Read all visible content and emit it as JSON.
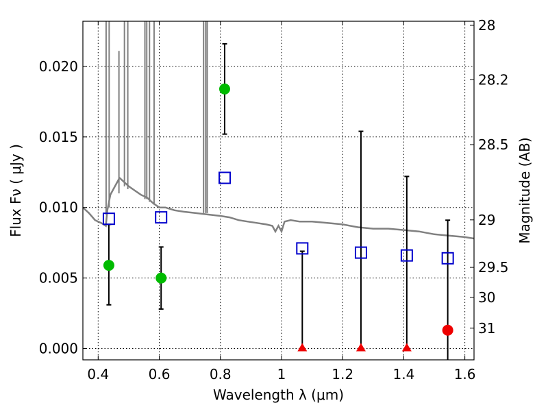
{
  "chart_data": {
    "type": "scatter",
    "xlabel": "Wavelength  λ (μm)",
    "ylabel": "Flux  Fν  ( μJy )",
    "y2label": "Magnitude (AB)",
    "xlim": [
      0.35,
      1.63
    ],
    "ylim": [
      -0.0008,
      0.0232
    ],
    "x_ticks": [
      0.4,
      0.6,
      0.8,
      1.0,
      1.2,
      1.4,
      1.6
    ],
    "x_tick_labels": [
      "0.4",
      "0.6",
      "0.8",
      "1",
      "1.2",
      "1.4",
      "1.6"
    ],
    "y_ticks": [
      0.0,
      0.005,
      0.01,
      0.015,
      0.02
    ],
    "y_tick_labels": [
      "0.000",
      "0.005",
      "0.010",
      "0.015",
      "0.020"
    ],
    "y2_ticks": [
      {
        "mag": 28,
        "label": "28"
      },
      {
        "mag": 28.2,
        "label": "28.2"
      },
      {
        "mag": 28.5,
        "label": "28.5"
      },
      {
        "mag": 29,
        "label": "29"
      },
      {
        "mag": 29.5,
        "label": "29.5"
      },
      {
        "mag": 30,
        "label": "30"
      },
      {
        "mag": 31,
        "label": "31"
      }
    ],
    "grid": true,
    "series": [
      {
        "marker": "circle",
        "color": "#00bb00",
        "points": [
          {
            "x": 0.435,
            "y": 0.0059,
            "yerr_low": 0.0031,
            "yerr_high": 0.0088
          },
          {
            "x": 0.606,
            "y": 0.005,
            "yerr_low": 0.0028,
            "yerr_high": 0.0072
          },
          {
            "x": 0.814,
            "y": 0.0184,
            "yerr_low": 0.0152,
            "yerr_high": 0.0216
          }
        ]
      },
      {
        "marker": "circle",
        "color": "#ee0000",
        "points": [
          {
            "x": 1.544,
            "y": 0.0013,
            "yerr_low": -0.0008,
            "yerr_high": 0.0091
          }
        ]
      },
      {
        "marker": "triangle",
        "color": "#ee0000",
        "points": [
          {
            "x": 1.068,
            "y": 0.0,
            "yerr_low": 0.0,
            "yerr_high": 0.0069
          },
          {
            "x": 1.26,
            "y": 0.0,
            "yerr_low": 0.0,
            "yerr_high": 0.0154
          },
          {
            "x": 1.41,
            "y": 0.0,
            "yerr_low": 0.0,
            "yerr_high": 0.0122
          }
        ]
      },
      {
        "marker": "open-square",
        "color": "#0000cc",
        "points": [
          {
            "x": 0.435,
            "y": 0.0092
          },
          {
            "x": 0.606,
            "y": 0.0093
          },
          {
            "x": 0.814,
            "y": 0.0121
          },
          {
            "x": 1.068,
            "y": 0.0071
          },
          {
            "x": 1.26,
            "y": 0.0068
          },
          {
            "x": 1.41,
            "y": 0.0066
          },
          {
            "x": 1.544,
            "y": 0.0064
          }
        ]
      },
      {
        "marker": "line",
        "color": "#808080",
        "points": [
          [
            0.35,
            0.01
          ],
          [
            0.37,
            0.0096
          ],
          [
            0.39,
            0.0091
          ],
          [
            0.41,
            0.0089
          ],
          [
            0.425,
            0.0087
          ],
          [
            0.43,
            0.0098
          ],
          [
            0.44,
            0.0109
          ],
          [
            0.45,
            0.0113
          ],
          [
            0.47,
            0.0121
          ],
          [
            0.48,
            0.0119
          ],
          [
            0.5,
            0.0115
          ],
          [
            0.52,
            0.0112
          ],
          [
            0.54,
            0.0109
          ],
          [
            0.56,
            0.0107
          ],
          [
            0.58,
            0.0103
          ],
          [
            0.6,
            0.01
          ],
          [
            0.62,
            0.01
          ],
          [
            0.65,
            0.0098
          ],
          [
            0.68,
            0.0097
          ],
          [
            0.72,
            0.0096
          ],
          [
            0.76,
            0.0095
          ],
          [
            0.8,
            0.0094
          ],
          [
            0.83,
            0.0093
          ],
          [
            0.86,
            0.0091
          ],
          [
            0.89,
            0.009
          ],
          [
            0.92,
            0.0089
          ],
          [
            0.95,
            0.0088
          ],
          [
            0.97,
            0.0087
          ],
          [
            0.98,
            0.0083
          ],
          [
            0.99,
            0.0087
          ],
          [
            1.0,
            0.0083
          ],
          [
            1.01,
            0.009
          ],
          [
            1.03,
            0.0091
          ],
          [
            1.06,
            0.009
          ],
          [
            1.1,
            0.009
          ],
          [
            1.15,
            0.0089
          ],
          [
            1.2,
            0.0088
          ],
          [
            1.25,
            0.0086
          ],
          [
            1.3,
            0.0085
          ],
          [
            1.35,
            0.0085
          ],
          [
            1.4,
            0.0084
          ],
          [
            1.45,
            0.0083
          ],
          [
            1.5,
            0.0081
          ],
          [
            1.55,
            0.008
          ],
          [
            1.6,
            0.0079
          ],
          [
            1.63,
            0.0078
          ]
        ],
        "spikes": [
          {
            "x": 0.426,
            "base": 0.0095,
            "top": 0.0232
          },
          {
            "x": 0.436,
            "base": 0.01,
            "top": 0.0232
          },
          {
            "x": 0.468,
            "base": 0.011,
            "top": 0.0211
          },
          {
            "x": 0.486,
            "base": 0.0115,
            "top": 0.0232
          },
          {
            "x": 0.497,
            "base": 0.0113,
            "top": 0.0232
          },
          {
            "x": 0.553,
            "base": 0.0106,
            "top": 0.0232
          },
          {
            "x": 0.559,
            "base": 0.0106,
            "top": 0.0232
          },
          {
            "x": 0.568,
            "base": 0.0104,
            "top": 0.0232
          },
          {
            "x": 0.583,
            "base": 0.0102,
            "top": 0.0232
          },
          {
            "x": 0.745,
            "base": 0.0096,
            "top": 0.0232
          },
          {
            "x": 0.752,
            "base": 0.0096,
            "top": 0.0232
          },
          {
            "x": 0.757,
            "base": 0.0096,
            "top": 0.0232
          }
        ]
      }
    ]
  }
}
